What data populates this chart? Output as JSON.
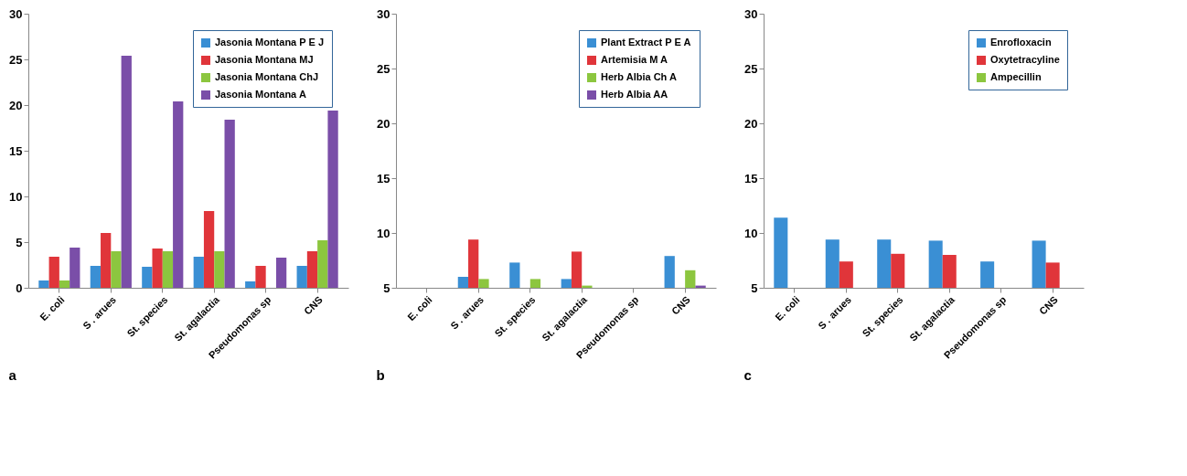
{
  "chart_data": [
    {
      "type": "bar",
      "categories": [
        "E. coli",
        "S . arues",
        "St. species",
        "St. agalactia",
        "Pseudomonas sp",
        "CNS"
      ],
      "ylim": [
        0,
        30
      ],
      "yticks": [
        0,
        5,
        10,
        15,
        20,
        25,
        30
      ],
      "grid": false,
      "legend": "top right",
      "annotations": [
        "a"
      ],
      "series": [
        {
          "name": "Jasonia Montana P E J",
          "color": "#3a8fd4",
          "values": [
            0.8,
            2.4,
            2.3,
            3.4,
            0.7,
            2.4
          ]
        },
        {
          "name": "Jasonia Montana MJ",
          "color": "#e0353a",
          "values": [
            3.4,
            6.0,
            4.3,
            8.4,
            2.4,
            4.0
          ]
        },
        {
          "name": "Jasonia Montana ChJ",
          "color": "#8cc63f",
          "values": [
            0.8,
            4.0,
            4.0,
            4.0,
            0,
            5.2
          ]
        },
        {
          "name": "Jasonia Montana A",
          "color": "#7a4ea8",
          "values": [
            4.4,
            25.4,
            20.4,
            18.4,
            3.3,
            19.4
          ]
        }
      ]
    },
    {
      "type": "bar",
      "categories": [
        "E. coli",
        "S . arues",
        "St. species",
        "St. agalactia",
        "Pseudomonas sp",
        "CNS"
      ],
      "ylim": [
        5,
        30
      ],
      "yticks": [
        5,
        10,
        15,
        20,
        25,
        30
      ],
      "grid": false,
      "legend": "top right",
      "annotations": [
        "b"
      ],
      "series": [
        {
          "name": "Plant Extract P E A",
          "color": "#3a8fd4",
          "values": [
            5,
            6.0,
            7.3,
            5.8,
            5,
            7.9
          ]
        },
        {
          "name": "Artemisia M A",
          "color": "#e0353a",
          "values": [
            5,
            9.4,
            5,
            8.3,
            5,
            5
          ]
        },
        {
          "name": "Herb Albia Ch A",
          "color": "#8cc63f",
          "values": [
            5,
            5.8,
            5.8,
            5.2,
            5,
            6.6
          ]
        },
        {
          "name": "Herb Albia AA",
          "color": "#7a4ea8",
          "values": [
            5,
            5,
            5,
            5,
            5,
            5.2
          ]
        }
      ]
    },
    {
      "type": "bar",
      "categories": [
        "E. coli",
        "S . arues",
        "St. species",
        "St. agalactia",
        "Pseudomonas sp",
        "CNS"
      ],
      "ylim": [
        5,
        30
      ],
      "yticks": [
        5,
        10,
        15,
        20,
        25,
        30
      ],
      "grid": false,
      "legend": "top right",
      "annotations": [
        "c"
      ],
      "series": [
        {
          "name": "Enrofloxacin",
          "color": "#3a8fd4",
          "values": [
            11.4,
            9.4,
            9.4,
            9.3,
            7.4,
            9.3
          ]
        },
        {
          "name": "Oxytetracyline",
          "color": "#e0353a",
          "values": [
            5,
            7.4,
            8.1,
            8.0,
            5,
            7.3
          ]
        },
        {
          "name": "Ampecillin",
          "color": "#8cc63f",
          "values": [
            5,
            5,
            5,
            5,
            5,
            5
          ]
        }
      ]
    }
  ]
}
